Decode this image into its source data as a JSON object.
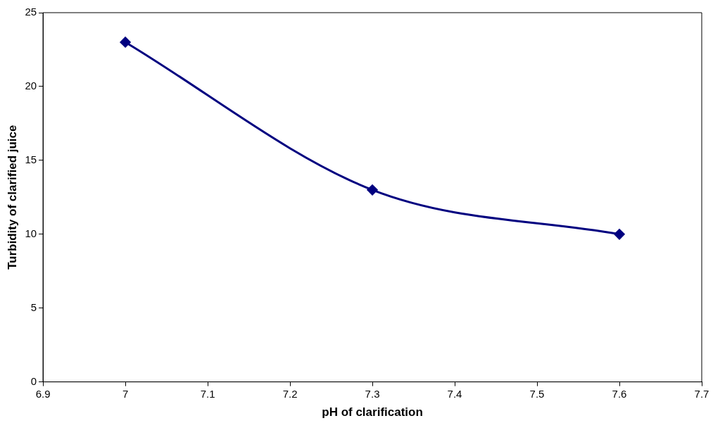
{
  "chart_data": {
    "type": "line",
    "xlabel": "pH of clarification",
    "ylabel": "Turbidity of clarified juice",
    "x": [
      7,
      7.3,
      7.6
    ],
    "series": [
      {
        "color": "#000080",
        "values": [
          23,
          13,
          10
        ]
      }
    ],
    "xlim": [
      6.9,
      7.7
    ],
    "xticks": [
      6.9,
      7,
      7.1,
      7.2,
      7.3,
      7.4,
      7.5,
      7.6,
      7.7
    ],
    "ylim": [
      0,
      25
    ],
    "yticks": [
      0,
      5,
      10,
      15,
      20,
      25
    ],
    "grid": false,
    "legend": false,
    "marker": "diamond",
    "line_style": "solid"
  }
}
